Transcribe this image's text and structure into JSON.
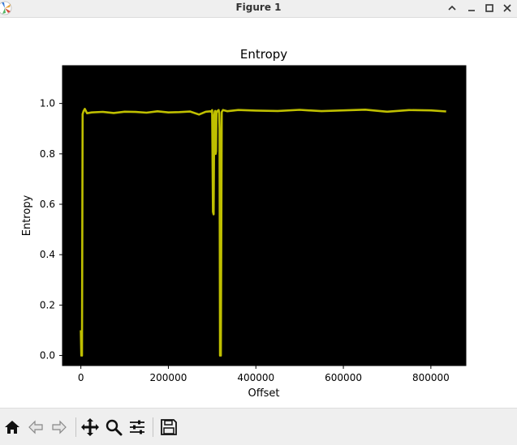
{
  "window": {
    "title": "Figure 1",
    "icon": "matplotlib-logo-icon",
    "controls": [
      "chevron-up-icon",
      "minimize-icon",
      "maximize-icon",
      "close-icon"
    ]
  },
  "toolbar": {
    "buttons": [
      "home-icon",
      "back-arrow-icon",
      "forward-arrow-icon",
      "pan-icon",
      "zoom-icon",
      "configure-subplots-icon",
      "save-icon"
    ]
  },
  "colors": {
    "plot_background": "#000000",
    "line": "#bfbf00",
    "titlebar": "#efefef",
    "toolbar": "#efefef"
  },
  "chart_data": {
    "type": "line",
    "title": "Entropy",
    "xlabel": "Offset",
    "ylabel": "Entropy",
    "xlim": [
      -42000,
      880000
    ],
    "ylim": [
      -0.04,
      1.15
    ],
    "xticks": [
      0,
      200000,
      400000,
      600000,
      800000
    ],
    "xtick_labels": [
      "0",
      "200000",
      "400000",
      "600000",
      "800000"
    ],
    "yticks": [
      0.0,
      0.2,
      0.4,
      0.6,
      0.8,
      1.0
    ],
    "ytick_labels": [
      "0.0",
      "0.2",
      "0.4",
      "0.6",
      "0.8",
      "1.0"
    ],
    "grid": false,
    "legend": false,
    "series": [
      {
        "x": [
          0,
          1000,
          2500,
          4000,
          6000,
          9000,
          14000,
          25000,
          50000,
          75000,
          100000,
          125000,
          150000,
          175000,
          200000,
          225000,
          250000,
          270000,
          285000,
          296000,
          298000,
          300000,
          302000,
          303500,
          305000,
          306000,
          307000,
          308000,
          309000,
          310000,
          312000,
          314000,
          315000,
          316000,
          317000,
          318000,
          320000,
          322000,
          325000,
          335000,
          360000,
          400000,
          450000,
          500000,
          550000,
          600000,
          650000,
          700000,
          750000,
          800000,
          835000
        ],
        "y": [
          0.1,
          0.0,
          0.0,
          0.96,
          0.97,
          0.975,
          0.965,
          0.963,
          0.965,
          0.966,
          0.964,
          0.967,
          0.966,
          0.965,
          0.967,
          0.966,
          0.965,
          0.96,
          0.965,
          0.968,
          0.97,
          0.97,
          0.57,
          0.56,
          0.95,
          0.97,
          0.97,
          0.8,
          0.81,
          0.96,
          0.97,
          0.975,
          0.97,
          0.965,
          0.9,
          0.0,
          0.0,
          0.965,
          0.972,
          0.973,
          0.971,
          0.972,
          0.973,
          0.971,
          0.972,
          0.973,
          0.972,
          0.971,
          0.972,
          0.971,
          0.972
        ]
      }
    ]
  }
}
